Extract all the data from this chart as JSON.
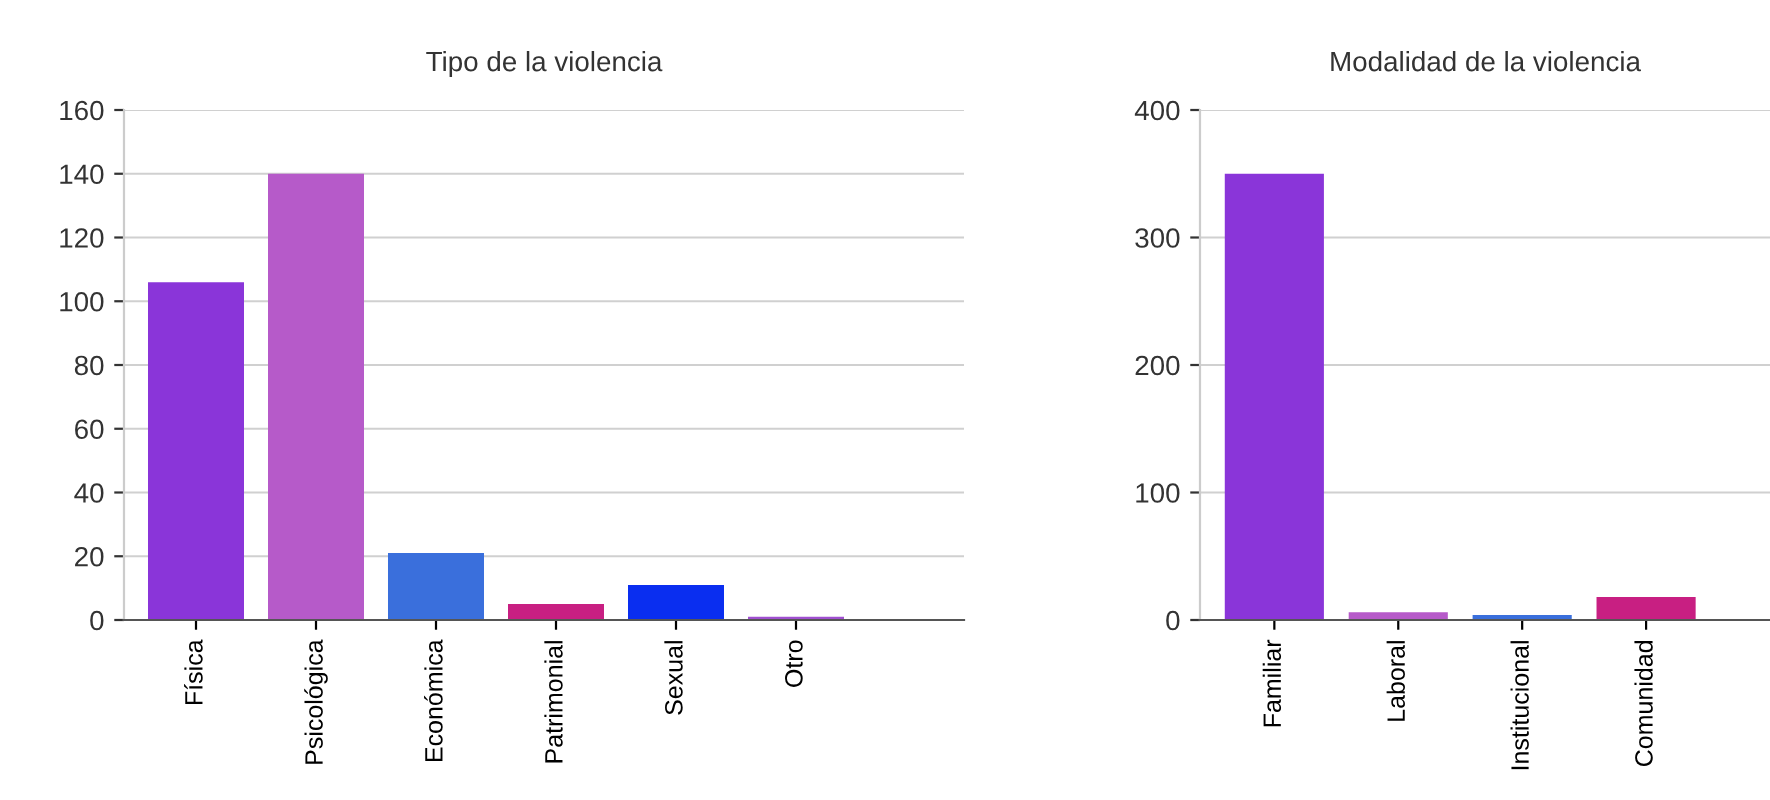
{
  "chart_data": [
    {
      "type": "bar",
      "title": "Tipo de la violencia",
      "categories": [
        "Física",
        "Psicológica",
        "Económica",
        "Patrimonial",
        "Sexual",
        "Otro"
      ],
      "values": [
        106,
        140,
        21,
        5,
        11,
        1
      ],
      "colors": [
        "#8a35d9",
        "#b65ac9",
        "#3a6fdc",
        "#c81f82",
        "#0a2ef0",
        "#a050d0"
      ],
      "ylim": [
        0,
        160
      ],
      "yticks": [
        0,
        20,
        40,
        60,
        80,
        100,
        120,
        140,
        160
      ],
      "grid": "y"
    },
    {
      "type": "bar",
      "title": "Modalidad de la violencia",
      "categories": [
        "Familiar",
        "Laboral",
        "Institucional",
        "Comunidad"
      ],
      "values": [
        350,
        6,
        4,
        18
      ],
      "colors": [
        "#8a35d9",
        "#b65ac9",
        "#3a6fdc",
        "#c81f82"
      ],
      "ylim": [
        0,
        400
      ],
      "yticks": [
        0,
        100,
        200,
        300,
        400
      ],
      "grid": "y"
    }
  ]
}
